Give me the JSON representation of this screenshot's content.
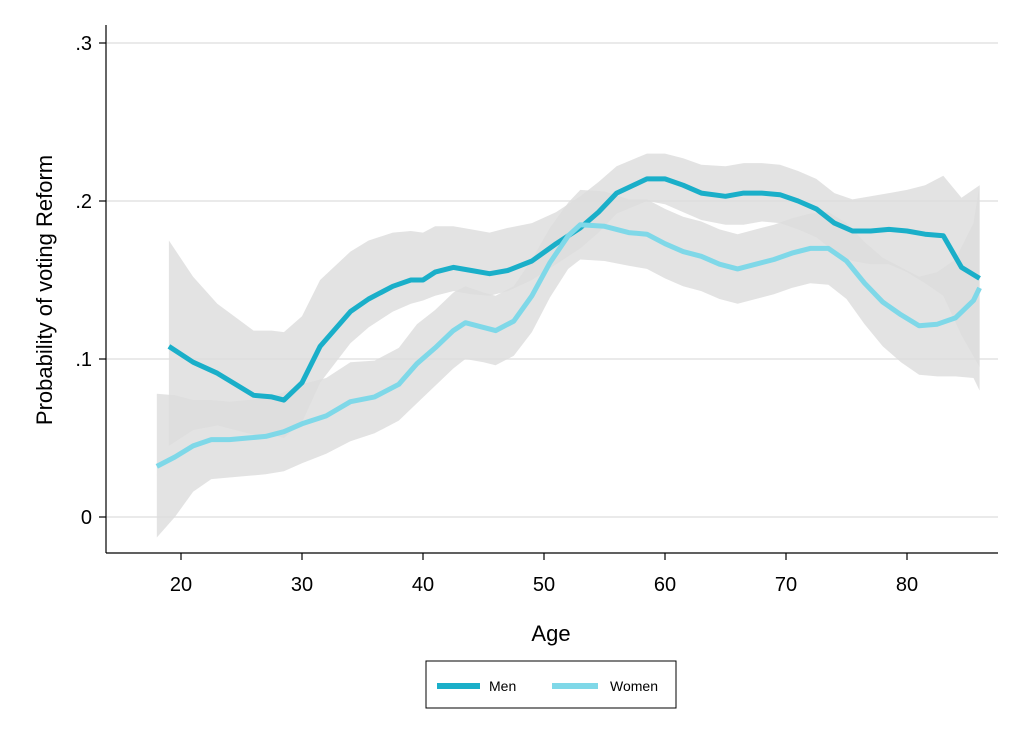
{
  "chart_data": {
    "type": "line",
    "title": "",
    "xlabel": "Age",
    "ylabel": "Probability of voting Reform",
    "xlim": [
      14,
      87
    ],
    "ylim": [
      -0.022,
      0.31
    ],
    "x_ticks": [
      20,
      30,
      40,
      50,
      60,
      70,
      80
    ],
    "x_tick_labels": [
      "20",
      "30",
      "40",
      "50",
      "60",
      "70",
      "80"
    ],
    "y_ticks": [
      0,
      0.1,
      0.2,
      0.3
    ],
    "y_tick_labels": [
      "0",
      ".1",
      ".2",
      ".3"
    ],
    "grid": true,
    "legend_position": "bottom-center",
    "series": [
      {
        "name": "Men",
        "color": "#1AAFC9",
        "band_color": "#DCDCDC",
        "x": [
          19,
          21,
          23,
          26,
          27.5,
          28.5,
          30,
          31.5,
          34,
          35.5,
          37.5,
          39,
          40,
          41,
          42.5,
          44,
          45.5,
          47,
          49,
          51,
          53,
          54.5,
          56,
          58.5,
          60,
          61.5,
          63,
          65,
          66.5,
          68,
          69.5,
          71,
          72.5,
          74,
          75.5,
          77,
          78.5,
          80,
          81.5,
          83,
          84.5,
          86
        ],
        "y": [
          0.108,
          0.098,
          0.091,
          0.077,
          0.076,
          0.074,
          0.085,
          0.108,
          0.13,
          0.138,
          0.146,
          0.15,
          0.15,
          0.155,
          0.158,
          0.156,
          0.154,
          0.156,
          0.162,
          0.173,
          0.183,
          0.193,
          0.205,
          0.214,
          0.214,
          0.21,
          0.205,
          0.203,
          0.205,
          0.205,
          0.204,
          0.2,
          0.195,
          0.186,
          0.181,
          0.181,
          0.182,
          0.181,
          0.179,
          0.178,
          0.158,
          0.151
        ],
        "lower": [
          0.045,
          0.055,
          0.058,
          0.052,
          0.052,
          0.05,
          0.06,
          0.085,
          0.11,
          0.12,
          0.13,
          0.135,
          0.137,
          0.14,
          0.143,
          0.141,
          0.14,
          0.143,
          0.15,
          0.16,
          0.17,
          0.18,
          0.192,
          0.2,
          0.198,
          0.193,
          0.188,
          0.185,
          0.185,
          0.187,
          0.186,
          0.182,
          0.177,
          0.168,
          0.162,
          0.16,
          0.16,
          0.155,
          0.148,
          0.14,
          0.115,
          0.095
        ],
        "upper": [
          0.175,
          0.152,
          0.135,
          0.118,
          0.118,
          0.117,
          0.127,
          0.15,
          0.168,
          0.175,
          0.18,
          0.181,
          0.18,
          0.184,
          0.184,
          0.182,
          0.18,
          0.183,
          0.186,
          0.193,
          0.203,
          0.212,
          0.222,
          0.23,
          0.23,
          0.227,
          0.223,
          0.222,
          0.224,
          0.224,
          0.223,
          0.219,
          0.214,
          0.205,
          0.201,
          0.203,
          0.205,
          0.207,
          0.21,
          0.216,
          0.202,
          0.21
        ]
      },
      {
        "name": "Women",
        "color": "#7FD8E8",
        "band_color": "#DCDCDC",
        "x": [
          18,
          19.5,
          21,
          22.5,
          24,
          25.5,
          27,
          28.5,
          30,
          32,
          34,
          36,
          38,
          39.5,
          41,
          42.5,
          43.5,
          45,
          46,
          47.5,
          49,
          50.5,
          52,
          53,
          55,
          57,
          58.5,
          60,
          61.5,
          63,
          64.5,
          66,
          67.5,
          69,
          70.5,
          72,
          73.5,
          75,
          76.5,
          78,
          79.5,
          81,
          82.5,
          84,
          85.5,
          86
        ],
        "y": [
          0.032,
          0.038,
          0.045,
          0.049,
          0.049,
          0.05,
          0.051,
          0.054,
          0.059,
          0.064,
          0.073,
          0.076,
          0.084,
          0.097,
          0.107,
          0.118,
          0.123,
          0.12,
          0.118,
          0.124,
          0.14,
          0.161,
          0.178,
          0.185,
          0.184,
          0.18,
          0.179,
          0.173,
          0.168,
          0.165,
          0.16,
          0.157,
          0.16,
          0.163,
          0.167,
          0.17,
          0.17,
          0.162,
          0.148,
          0.136,
          0.128,
          0.121,
          0.122,
          0.126,
          0.137,
          0.145
        ],
        "lower": [
          -0.013,
          0.0,
          0.016,
          0.024,
          0.025,
          0.026,
          0.027,
          0.029,
          0.034,
          0.04,
          0.048,
          0.053,
          0.061,
          0.072,
          0.083,
          0.094,
          0.1,
          0.098,
          0.096,
          0.102,
          0.117,
          0.139,
          0.157,
          0.163,
          0.162,
          0.159,
          0.157,
          0.151,
          0.146,
          0.143,
          0.138,
          0.135,
          0.138,
          0.141,
          0.145,
          0.148,
          0.147,
          0.138,
          0.122,
          0.108,
          0.098,
          0.09,
          0.089,
          0.089,
          0.088,
          0.08
        ],
        "upper": [
          0.078,
          0.077,
          0.074,
          0.074,
          0.073,
          0.074,
          0.075,
          0.079,
          0.084,
          0.088,
          0.098,
          0.099,
          0.107,
          0.122,
          0.131,
          0.142,
          0.146,
          0.142,
          0.14,
          0.146,
          0.163,
          0.183,
          0.199,
          0.207,
          0.206,
          0.201,
          0.201,
          0.195,
          0.19,
          0.187,
          0.182,
          0.179,
          0.182,
          0.185,
          0.189,
          0.192,
          0.193,
          0.186,
          0.174,
          0.164,
          0.158,
          0.152,
          0.155,
          0.163,
          0.186,
          0.21
        ]
      }
    ]
  }
}
